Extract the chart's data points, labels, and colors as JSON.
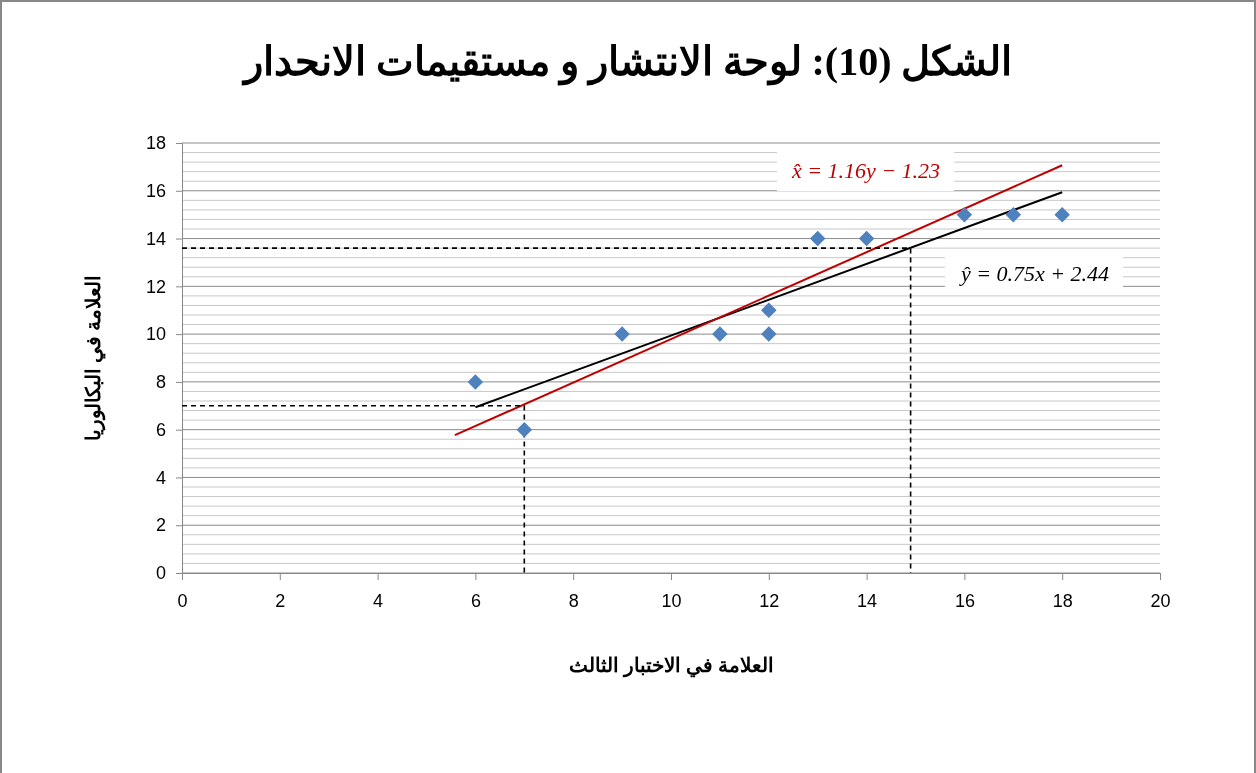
{
  "chart_data": {
    "type": "scatter",
    "title": "الشكل (10): لوحة الانتشار و مستقيمات الانحدار",
    "xlabel": "العلامة في الاختبار الثالث",
    "ylabel": "العلامة في البكالوريا",
    "xlim": [
      0,
      20
    ],
    "xticks": [
      0,
      2,
      4,
      6,
      8,
      10,
      12,
      14,
      16,
      18,
      20
    ],
    "ylim": [
      0,
      18
    ],
    "yticks": [
      0,
      2,
      4,
      6,
      8,
      10,
      12,
      14,
      16,
      18
    ],
    "grid": "y",
    "series": [
      {
        "marker": "diamond",
        "color": "#4f81bd",
        "x": [
          6,
          7,
          9,
          11,
          12,
          12,
          13,
          14,
          16,
          17,
          18
        ],
        "values": [
          8,
          6,
          10,
          10,
          11,
          10,
          14,
          14,
          15,
          15,
          15
        ]
      },
      {
        "type": "line",
        "color": "#000000",
        "line_style": "solid",
        "x": [
          6,
          18
        ],
        "values": [
          6.94,
          15.94
        ]
      },
      {
        "type": "line",
        "color": "#c00000",
        "line_style": "solid",
        "x": [
          5.58,
          18.0
        ],
        "values": [
          5.77,
          17.07
        ]
      },
      {
        "type": "line",
        "color": "#000000",
        "line_style": "dashed",
        "x": [
          0,
          7,
          7
        ],
        "values": [
          7.0,
          7.0,
          0
        ]
      },
      {
        "type": "line",
        "color": "#000000",
        "line_style": "dashed",
        "x": [
          0,
          14.9,
          14.9
        ],
        "values": [
          13.6,
          13.6,
          0
        ]
      }
    ],
    "annotations": [
      "x̂ = 1.16y − 1.23",
      "ŷ = 0.75x + 2.44"
    ]
  }
}
